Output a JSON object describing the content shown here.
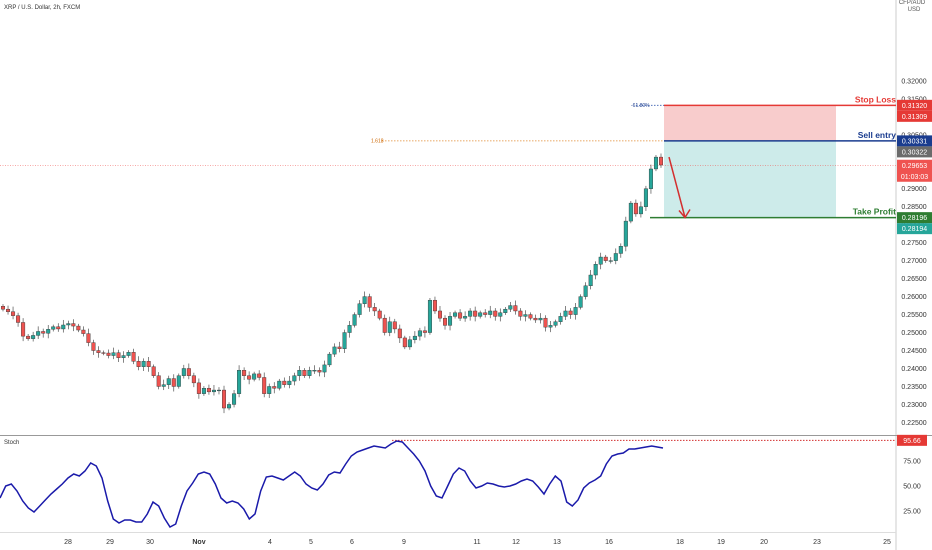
{
  "header": {
    "symbol": "XRP / U.S. Dollar, 2h, FXCM",
    "currency_top": "CFP/AUD",
    "currency": "USD"
  },
  "colors": {
    "bull": "#26a69a",
    "bear": "#ef5350",
    "candle_outline": "#333333",
    "stop": "#e53935",
    "entry": "#1a3c8f",
    "profit": "#2e7d32",
    "stoch": "#1a1aaa",
    "risk_zone": "#f8cccc",
    "reward_zone": "#cdebea"
  },
  "chart_data": [
    {
      "type": "candlestick",
      "title": "XRP / U.S. Dollar, 2h, FXCM",
      "y_unit": "USD",
      "ylim": [
        0.2215,
        0.3425
      ],
      "y_ticks": [
        "0.32000",
        "0.31500",
        "0.31000",
        "0.30500",
        "0.30000",
        "0.29500",
        "0.29000",
        "0.28500",
        "0.28000",
        "0.27500",
        "0.27000",
        "0.26500",
        "0.26000",
        "0.25500",
        "0.25000",
        "0.24500",
        "0.24000",
        "0.23500",
        "0.23000",
        "0.22500"
      ],
      "x_tick_labels": [
        "28",
        "29",
        "30",
        "Nov",
        "4",
        "5",
        "6",
        "9",
        "11",
        "12",
        "13",
        "16",
        "18",
        "19",
        "20",
        "23",
        "25"
      ],
      "candles_close": [
        0.2565,
        0.2558,
        0.2547,
        0.2528,
        0.249,
        0.2483,
        0.2492,
        0.2503,
        0.2498,
        0.2509,
        0.2516,
        0.251,
        0.2521,
        0.2525,
        0.2518,
        0.2507,
        0.2497,
        0.2472,
        0.245,
        0.2444,
        0.2443,
        0.2436,
        0.2444,
        0.243,
        0.2436,
        0.2445,
        0.242,
        0.2405,
        0.242,
        0.2405,
        0.238,
        0.235,
        0.2355,
        0.2372,
        0.235,
        0.238,
        0.24,
        0.238,
        0.236,
        0.233,
        0.2345,
        0.2335,
        0.234,
        0.234,
        0.229,
        0.23,
        0.233,
        0.2395,
        0.238,
        0.237,
        0.2385,
        0.2375,
        0.233,
        0.235,
        0.2345,
        0.2365,
        0.2355,
        0.2365,
        0.238,
        0.2395,
        0.238,
        0.2395,
        0.2395,
        0.239,
        0.241,
        0.244,
        0.246,
        0.2455,
        0.25,
        0.252,
        0.255,
        0.258,
        0.26,
        0.257,
        0.256,
        0.254,
        0.25,
        0.253,
        0.251,
        0.2485,
        0.246,
        0.248,
        0.249,
        0.2505,
        0.25,
        0.259,
        0.256,
        0.254,
        0.252,
        0.2545,
        0.2555,
        0.254,
        0.2545,
        0.256,
        0.2545,
        0.2555,
        0.255,
        0.256,
        0.2545,
        0.2555,
        0.2565,
        0.2575,
        0.256,
        0.2545,
        0.255,
        0.254,
        0.2535,
        0.254,
        0.2515,
        0.252,
        0.253,
        0.2545,
        0.256,
        0.255,
        0.257,
        0.26,
        0.263,
        0.266,
        0.269,
        0.271,
        0.27,
        0.27,
        0.272,
        0.274,
        0.281,
        0.286,
        0.283,
        0.285,
        0.29,
        0.2955,
        0.2988,
        0.2966
      ],
      "projection": {
        "from": 0.2966,
        "to": 0.282
      },
      "levels": [
        {
          "name": "Stop Loss",
          "price": "0.31320",
          "secondary": "0.31309"
        },
        {
          "name": "Sell entry",
          "price": "0.30331",
          "secondary": "0.30322"
        },
        {
          "name": "Take Profit",
          "price": "0.28196",
          "secondary": "0.28194"
        }
      ],
      "current_price": "0.29653",
      "countdown": "01:03:03",
      "fib_entry_label": "1.618",
      "fib_stop_label": "-61.80%"
    },
    {
      "type": "line",
      "title": "Stoch",
      "ylim": [
        4,
        100
      ],
      "y_ticks": [
        "75.00",
        "50.00",
        "25.00"
      ],
      "current_value": "95.66",
      "values": [
        38,
        50,
        52,
        45,
        35,
        28,
        24,
        30,
        36,
        42,
        47,
        52,
        58,
        62,
        60,
        65,
        73,
        70,
        58,
        35,
        17,
        13,
        16,
        16,
        14,
        14,
        22,
        34,
        30,
        18,
        9,
        12,
        30,
        45,
        53,
        62,
        64,
        62,
        52,
        38,
        33,
        35,
        33,
        27,
        17,
        22,
        45,
        59,
        60,
        58,
        56,
        60,
        64,
        60,
        52,
        48,
        46,
        52,
        61,
        64,
        63,
        72,
        80,
        84,
        86,
        88,
        90,
        89,
        88,
        92,
        95,
        94,
        88,
        82,
        75,
        65,
        50,
        40,
        38,
        50,
        62,
        68,
        65,
        55,
        48,
        50,
        53,
        52,
        50,
        49,
        50,
        52,
        55,
        57,
        55,
        49,
        42,
        52,
        60,
        55,
        34,
        30,
        36,
        48,
        53,
        56,
        60,
        72,
        80,
        82,
        83,
        87,
        87,
        88,
        89,
        90,
        89,
        88
      ]
    }
  ]
}
